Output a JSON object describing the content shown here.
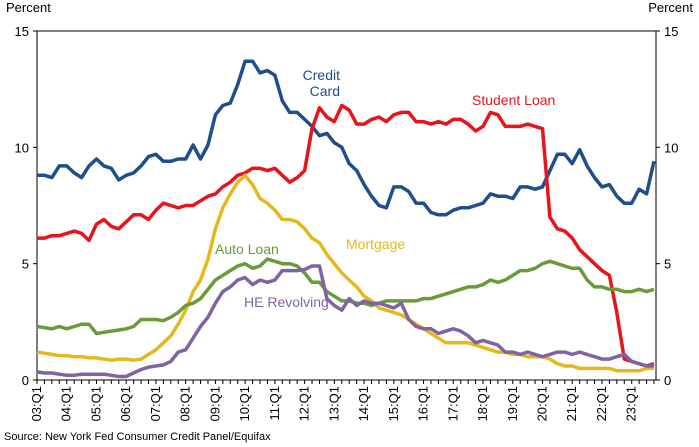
{
  "chart_data": {
    "type": "line",
    "y_label": "Percent",
    "y2_label": "Percent",
    "source": "Source: New York Fed Consumer Credit Panel/Equifax",
    "categories": [
      "03:Q1",
      null,
      null,
      null,
      "04:Q1",
      null,
      null,
      null,
      "05:Q1",
      null,
      null,
      null,
      "06:Q1",
      null,
      null,
      null,
      "07:Q1",
      null,
      null,
      null,
      "08:Q1",
      null,
      null,
      null,
      "09:Q1",
      null,
      null,
      null,
      "10:Q1",
      null,
      null,
      null,
      "11:Q1",
      null,
      null,
      null,
      "12:Q1",
      null,
      null,
      null,
      "13:Q1",
      null,
      null,
      null,
      "14:Q1",
      null,
      null,
      null,
      "15:Q1",
      null,
      null,
      null,
      "16:Q1",
      null,
      null,
      null,
      "17:Q1",
      null,
      null,
      null,
      "18:Q1",
      null,
      null,
      null,
      "19:Q1",
      null,
      null,
      null,
      "20:Q1",
      null,
      null,
      null,
      "21:Q1",
      null,
      null,
      null,
      "22:Q1",
      null,
      null,
      null,
      "23:Q1",
      null,
      null,
      null
    ],
    "ylim": [
      0,
      15
    ],
    "yticks": [
      0,
      5,
      10,
      15
    ],
    "y2lim": [
      0,
      15
    ],
    "y2ticks": [
      0,
      5,
      10,
      15
    ],
    "series": [
      {
        "name": "Credit Card",
        "color": "#1f4e8c",
        "values": [
          8.8,
          8.8,
          8.7,
          9.2,
          9.2,
          8.9,
          8.7,
          9.2,
          9.5,
          9.2,
          9.1,
          8.6,
          8.8,
          8.9,
          9.2,
          9.6,
          9.7,
          9.4,
          9.4,
          9.5,
          9.5,
          10.1,
          9.5,
          10.1,
          11.4,
          11.8,
          11.9,
          12.7,
          13.7,
          13.7,
          13.2,
          13.3,
          13.1,
          12.0,
          11.5,
          11.5,
          11.2,
          10.9,
          10.5,
          10.6,
          10.2,
          10.0,
          9.3,
          9.0,
          8.4,
          7.9,
          7.5,
          7.4,
          8.3,
          8.3,
          8.1,
          7.6,
          7.6,
          7.2,
          7.1,
          7.1,
          7.3,
          7.4,
          7.4,
          7.5,
          7.6,
          8.0,
          7.9,
          7.9,
          7.8,
          8.3,
          8.3,
          8.2,
          8.3,
          9.0,
          9.7,
          9.7,
          9.3,
          9.9,
          9.2,
          8.7,
          8.3,
          8.4,
          7.9,
          7.6,
          7.6,
          8.2,
          8.0,
          9.4
        ]
      },
      {
        "name": "Student Loan",
        "color": "#e8141b",
        "values": [
          6.1,
          6.1,
          6.2,
          6.2,
          6.3,
          6.4,
          6.3,
          6.0,
          6.7,
          6.9,
          6.6,
          6.5,
          6.8,
          7.1,
          7.1,
          6.9,
          7.3,
          7.6,
          7.5,
          7.4,
          7.5,
          7.5,
          7.7,
          7.9,
          8.0,
          8.3,
          8.5,
          8.8,
          8.9,
          9.1,
          9.1,
          9.0,
          9.1,
          8.8,
          8.5,
          8.7,
          9.0,
          10.8,
          11.7,
          11.3,
          11.1,
          11.8,
          11.6,
          11.0,
          11.0,
          11.2,
          11.3,
          11.1,
          11.4,
          11.5,
          11.5,
          11.1,
          11.1,
          11.0,
          11.1,
          11.0,
          11.2,
          11.2,
          11.0,
          10.7,
          10.9,
          11.5,
          11.4,
          10.9,
          10.9,
          10.9,
          11.0,
          10.9,
          10.8,
          7.0,
          6.5,
          6.4,
          6.1,
          5.6,
          5.3,
          5.0,
          4.7,
          4.5,
          2.9,
          0.9,
          0.8,
          0.7,
          0.6,
          0.7
        ]
      },
      {
        "name": "Mortgage",
        "color": "#e5b81e",
        "values": [
          1.2,
          1.15,
          1.1,
          1.05,
          1.05,
          1.0,
          1.0,
          0.95,
          0.95,
          0.9,
          0.85,
          0.9,
          0.9,
          0.85,
          0.9,
          1.1,
          1.3,
          1.6,
          1.9,
          2.4,
          3.0,
          3.8,
          4.3,
          5.2,
          6.5,
          7.4,
          8.0,
          8.5,
          8.8,
          8.4,
          7.8,
          7.6,
          7.3,
          6.9,
          6.9,
          6.8,
          6.5,
          6.1,
          5.9,
          5.4,
          5.0,
          4.6,
          4.3,
          4.0,
          3.6,
          3.4,
          3.1,
          3.0,
          2.9,
          2.8,
          2.6,
          2.4,
          2.2,
          2.0,
          1.8,
          1.6,
          1.6,
          1.6,
          1.6,
          1.5,
          1.4,
          1.3,
          1.2,
          1.2,
          1.1,
          1.1,
          1.0,
          1.0,
          1.0,
          0.9,
          0.7,
          0.6,
          0.6,
          0.5,
          0.5,
          0.5,
          0.5,
          0.5,
          0.4,
          0.4,
          0.4,
          0.4,
          0.5,
          0.5
        ]
      },
      {
        "name": "Auto Loan",
        "color": "#6a9a3a",
        "values": [
          2.3,
          2.25,
          2.2,
          2.3,
          2.2,
          2.3,
          2.4,
          2.4,
          2.0,
          2.05,
          2.1,
          2.15,
          2.2,
          2.3,
          2.6,
          2.6,
          2.6,
          2.55,
          2.7,
          2.9,
          3.2,
          3.3,
          3.5,
          3.9,
          4.3,
          4.5,
          4.7,
          4.9,
          5.0,
          4.8,
          4.9,
          5.2,
          5.1,
          5.0,
          5.0,
          4.9,
          4.6,
          4.2,
          4.2,
          3.8,
          3.6,
          3.4,
          3.4,
          3.3,
          3.3,
          3.2,
          3.3,
          3.4,
          3.4,
          3.4,
          3.4,
          3.4,
          3.5,
          3.5,
          3.6,
          3.7,
          3.8,
          3.9,
          4.0,
          4.0,
          4.1,
          4.3,
          4.2,
          4.3,
          4.5,
          4.7,
          4.7,
          4.8,
          5.0,
          5.1,
          5.0,
          4.9,
          4.8,
          4.8,
          4.3,
          4.0,
          4.0,
          3.9,
          3.9,
          3.8,
          3.8,
          3.9,
          3.8,
          3.9
        ]
      },
      {
        "name": "HE Revolving",
        "color": "#8064a2",
        "values": [
          0.35,
          0.3,
          0.3,
          0.25,
          0.2,
          0.2,
          0.25,
          0.25,
          0.25,
          0.25,
          0.2,
          0.15,
          0.15,
          0.3,
          0.45,
          0.55,
          0.6,
          0.65,
          0.8,
          1.2,
          1.3,
          1.8,
          2.3,
          2.7,
          3.3,
          3.8,
          4.0,
          4.3,
          4.4,
          4.1,
          4.3,
          4.2,
          4.3,
          4.7,
          4.7,
          4.7,
          4.75,
          4.9,
          4.9,
          3.5,
          3.2,
          3.0,
          3.5,
          3.2,
          3.4,
          3.3,
          3.3,
          3.2,
          3.1,
          3.3,
          2.6,
          2.3,
          2.2,
          2.2,
          2.0,
          2.1,
          2.2,
          2.1,
          1.9,
          1.6,
          1.7,
          1.6,
          1.5,
          1.2,
          1.2,
          1.1,
          1.2,
          1.1,
          1.0,
          1.1,
          1.2,
          1.2,
          1.1,
          1.2,
          1.1,
          1.0,
          0.9,
          0.9,
          1.0,
          1.1,
          0.8,
          0.7,
          0.6,
          0.6
        ]
      }
    ]
  }
}
